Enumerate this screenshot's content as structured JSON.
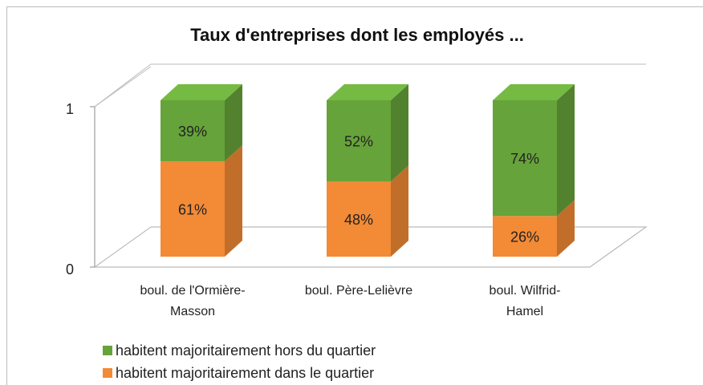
{
  "chart_data": {
    "type": "bar3d_stacked",
    "title": "Taux d'entreprises dont les employés ...",
    "categories": [
      "boul. de l'Ormière-\nMasson",
      "boul. Père-Lelièvre",
      "boul. Wilfrid-\nHamel"
    ],
    "series": [
      {
        "name": "habitent majoritairement dans le quartier",
        "color": "#f28a36",
        "values": [
          0.61,
          0.48,
          0.26
        ],
        "value_labels": [
          "61%",
          "48%",
          "26%"
        ]
      },
      {
        "name": "habitent majoritairement hors du quartier",
        "color": "#66a33a",
        "values": [
          0.39,
          0.52,
          0.74
        ],
        "value_labels": [
          "39%",
          "52%",
          "74%"
        ]
      }
    ],
    "ylim": [
      0,
      1
    ],
    "yticks": [
      0,
      1
    ]
  }
}
